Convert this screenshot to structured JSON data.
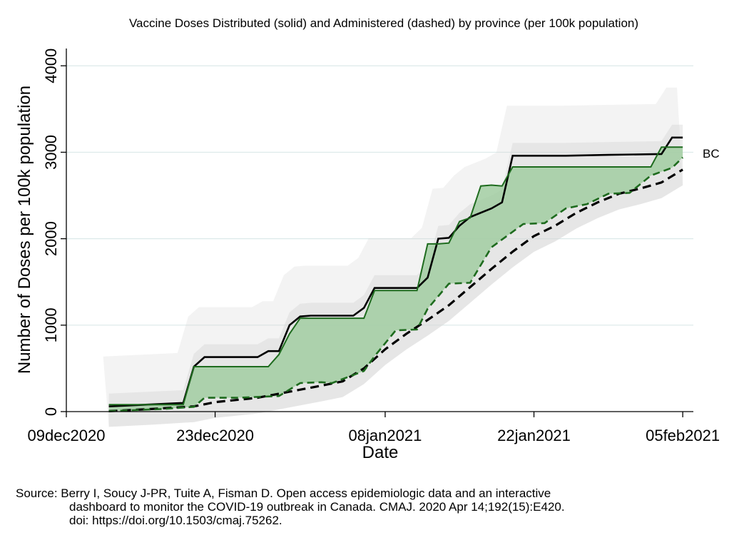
{
  "chart_data": {
    "type": "line",
    "title": "Vaccine Doses Distributed (solid) and Administered (dashed) by province (per 100k population)",
    "xlabel": "Date",
    "ylabel": "Number of Doses per 100k population",
    "xlim": [
      "2020-12-09",
      "2021-02-06"
    ],
    "ylim": [
      0,
      4200
    ],
    "x_ticks": [
      "2020-12-09",
      "2020-12-23",
      "2021-01-08",
      "2021-01-22",
      "2021-02-05"
    ],
    "x_tick_labels": [
      "09dec2020",
      "23dec2020",
      "08jan2021",
      "22jan2021",
      "05feb2021"
    ],
    "y_ticks": [
      0,
      1000,
      2000,
      3000,
      4000
    ],
    "y_tick_labels": [
      "0",
      "1000",
      "2000",
      "3000",
      "4000"
    ],
    "grid": true,
    "highlight_label": "BC",
    "highlight_fill_color": "#9dcc9d",
    "highlight_line_color": "#1e6b1e",
    "canada_line_color": "#000000",
    "background_band_color": "#d6d6d6",
    "series": [
      {
        "style": "solid-black",
        "x": [
          "2020-12-13",
          "2020-12-20",
          "2020-12-21",
          "2020-12-22",
          "2020-12-27",
          "2020-12-28",
          "2020-12-29",
          "2020-12-30",
          "2020-12-31",
          "2021-01-01",
          "2021-01-05",
          "2021-01-06",
          "2021-01-07",
          "2021-01-11",
          "2021-01-12",
          "2021-01-13",
          "2021-01-14",
          "2021-01-15",
          "2021-01-16",
          "2021-01-18",
          "2021-01-19",
          "2021-01-20",
          "2021-01-21",
          "2021-01-25",
          "2021-01-29",
          "2021-02-03",
          "2021-02-04",
          "2021-02-05"
        ],
        "y": [
          60,
          100,
          520,
          630,
          630,
          700,
          700,
          1000,
          1100,
          1110,
          1110,
          1200,
          1430,
          1430,
          1550,
          2000,
          2010,
          2150,
          2250,
          2350,
          2420,
          2960,
          2960,
          2960,
          2970,
          2980,
          3170,
          3170
        ]
      },
      {
        "style": "solid-green",
        "x": [
          "2020-12-13",
          "2020-12-20",
          "2020-12-21",
          "2020-12-28",
          "2020-12-29",
          "2020-12-30",
          "2020-12-31",
          "2021-01-06",
          "2021-01-07",
          "2021-01-11",
          "2021-01-12",
          "2021-01-13",
          "2021-01-14",
          "2021-01-15",
          "2021-01-16",
          "2021-01-17",
          "2021-01-18",
          "2021-01-19",
          "2021-01-20",
          "2021-01-21",
          "2021-02-02",
          "2021-02-03",
          "2021-02-05"
        ],
        "y": [
          80,
          80,
          520,
          520,
          660,
          900,
          1080,
          1080,
          1400,
          1400,
          1940,
          1940,
          1950,
          2200,
          2240,
          2610,
          2620,
          2610,
          2830,
          2830,
          2830,
          3060,
          3060
        ]
      },
      {
        "style": "dashed-green",
        "x": [
          "2020-12-13",
          "2020-12-18",
          "2020-12-21",
          "2020-12-22",
          "2020-12-25",
          "2020-12-29",
          "2020-12-31",
          "2021-01-02",
          "2021-01-03",
          "2021-01-06",
          "2021-01-07",
          "2021-01-09",
          "2021-01-11",
          "2021-01-12",
          "2021-01-14",
          "2021-01-16",
          "2021-01-18",
          "2021-01-21",
          "2021-01-23",
          "2021-01-25",
          "2021-01-27",
          "2021-01-29",
          "2021-01-31",
          "2021-02-02",
          "2021-02-04",
          "2021-02-05"
        ],
        "y": [
          5,
          30,
          55,
          160,
          160,
          180,
          330,
          340,
          330,
          470,
          640,
          940,
          950,
          1190,
          1480,
          1490,
          1900,
          2170,
          2180,
          2350,
          2400,
          2520,
          2530,
          2730,
          2820,
          2940
        ]
      },
      {
        "style": "dashed-black",
        "x": [
          "2020-12-13",
          "2020-12-17",
          "2020-12-21",
          "2020-12-23",
          "2020-12-27",
          "2020-12-30",
          "2021-01-02",
          "2021-01-04",
          "2021-01-06",
          "2021-01-08",
          "2021-01-10",
          "2021-01-12",
          "2021-01-14",
          "2021-01-16",
          "2021-01-18",
          "2021-01-20",
          "2021-01-22",
          "2021-01-24",
          "2021-01-26",
          "2021-01-28",
          "2021-01-30",
          "2021-02-01",
          "2021-02-03",
          "2021-02-05"
        ],
        "y": [
          5,
          30,
          60,
          110,
          160,
          230,
          300,
          350,
          500,
          720,
          900,
          1060,
          1230,
          1440,
          1650,
          1850,
          2030,
          2150,
          2300,
          2420,
          2520,
          2580,
          2650,
          2800
        ]
      }
    ]
  },
  "source": {
    "line1": "Source: Berry I, Soucy J-PR, Tuite A, Fisman D. Open access epidemiologic data and an interactive",
    "line2": "dashboard to monitor the COVID-19 outbreak in Canada. CMAJ. 2020 Apr 14;192(15):E420.",
    "line3": "doi: https://doi.org/10.1503/cmaj.75262."
  }
}
